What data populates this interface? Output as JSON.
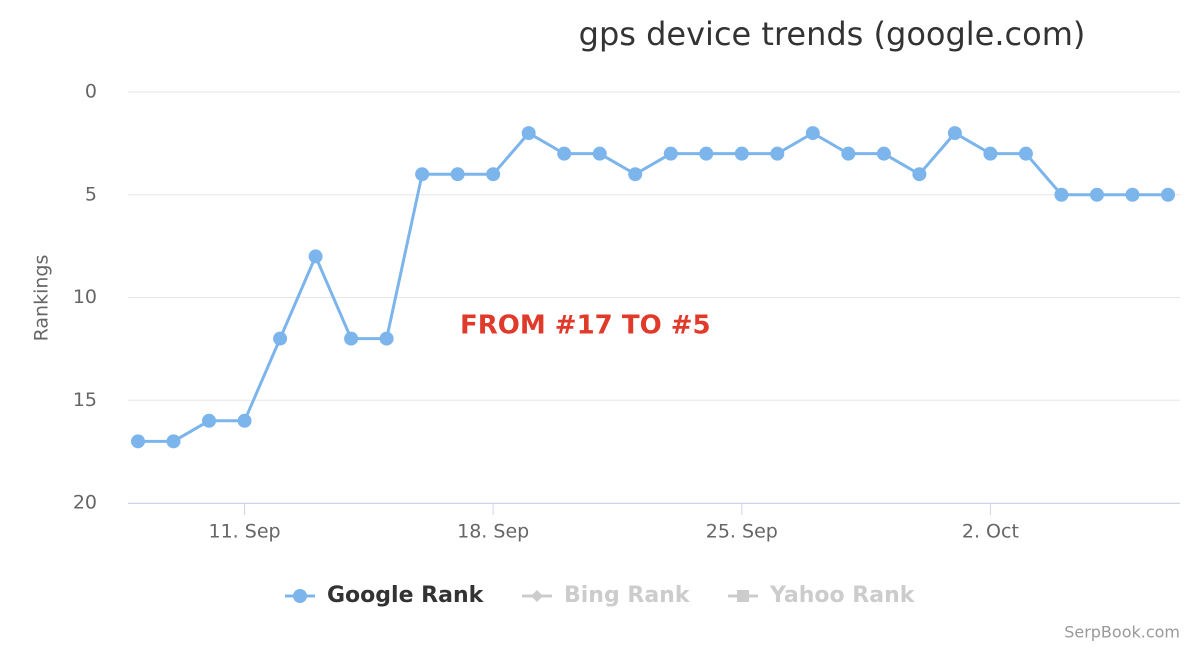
{
  "chart_data": {
    "type": "line",
    "title": "gps device trends (google.com)",
    "y_label": "Rankings",
    "annotation": "FROM #17 TO #5",
    "credit": "SerpBook.com",
    "categories": [
      null,
      null,
      null,
      "11. Sep",
      null,
      null,
      null,
      null,
      null,
      null,
      "18. Sep",
      null,
      null,
      null,
      null,
      null,
      null,
      "25. Sep",
      null,
      null,
      null,
      null,
      null,
      null,
      "2. Oct",
      null,
      null,
      null,
      null,
      null
    ],
    "series": [
      {
        "name": "Google Rank",
        "color": "#7cb5ec",
        "marker": "circle",
        "visible": true,
        "values": [
          17,
          17,
          16,
          16,
          12,
          8,
          12,
          12,
          4,
          4,
          4,
          2,
          3,
          3,
          4,
          3,
          3,
          3,
          3,
          2,
          3,
          3,
          4,
          2,
          3,
          3,
          5,
          5,
          5,
          5
        ]
      },
      {
        "name": "Bing Rank",
        "color": "#cccccc",
        "marker": "diamond",
        "visible": false,
        "values": [
          null,
          null,
          null,
          null,
          null,
          null,
          null,
          null,
          null,
          null,
          null,
          null,
          null,
          null,
          null,
          null,
          null,
          null,
          null,
          null,
          null,
          null,
          null,
          null,
          null,
          null,
          null,
          null,
          null,
          null
        ]
      },
      {
        "name": "Yahoo Rank",
        "color": "#cccccc",
        "marker": "square",
        "visible": false,
        "values": [
          null,
          null,
          null,
          null,
          null,
          null,
          null,
          null,
          null,
          null,
          null,
          null,
          null,
          null,
          null,
          null,
          null,
          null,
          null,
          null,
          null,
          null,
          null,
          null,
          null,
          null,
          null,
          null,
          null,
          null
        ]
      }
    ],
    "ylim": [
      0,
      20
    ],
    "yticks": [
      0,
      5,
      10,
      15,
      20
    ],
    "y_reversed": true,
    "grid": true,
    "legend": "bottom"
  }
}
